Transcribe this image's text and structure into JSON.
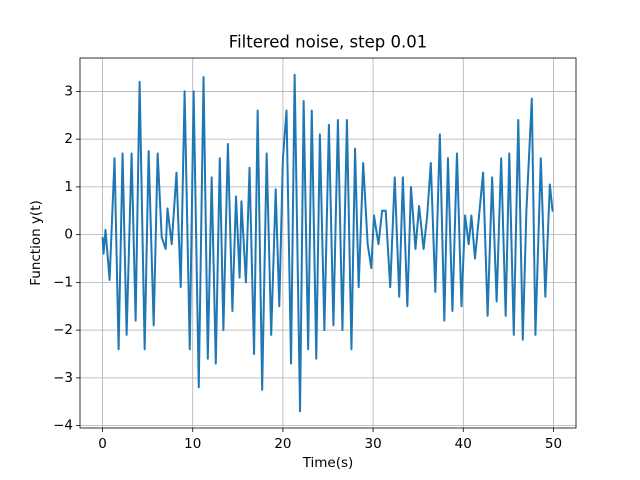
{
  "chart_data": {
    "type": "line",
    "title": "Filtered noise, step 0.01",
    "x_label": "Time(s)",
    "y_label": "Function y(t)",
    "color": "#1f77b4",
    "grid": true,
    "xlim": [
      -2.5,
      52.5
    ],
    "ylim": [
      -4.05,
      3.7
    ],
    "xticks": [
      0,
      10,
      20,
      30,
      40,
      50
    ],
    "yticks": [
      {
        "value": -4,
        "label": "−4"
      },
      {
        "value": -3,
        "label": "−3"
      },
      {
        "value": -2,
        "label": "−2"
      },
      {
        "value": -1,
        "label": "−1"
      },
      0,
      1,
      2,
      3
    ],
    "x": [
      0,
      0.11,
      0.33,
      0.78,
      1.33,
      1.78,
      2.22,
      2.67,
      3.22,
      3.67,
      4.11,
      4.67,
      5.11,
      5.67,
      6.11,
      6.56,
      7.0,
      7.2,
      7.67,
      8.2,
      8.67,
      9.1,
      9.67,
      10.1,
      10.67,
      11.2,
      11.67,
      12.1,
      12.56,
      13.0,
      13.4,
      13.9,
      14.4,
      14.8,
      15.2,
      15.4,
      15.9,
      16.3,
      16.8,
      17.2,
      17.7,
      18.2,
      18.7,
      19.2,
      19.6,
      20.0,
      20.4,
      20.9,
      21.3,
      21.9,
      22.3,
      22.8,
      23.2,
      23.7,
      24.1,
      24.6,
      25.1,
      25.6,
      26.1,
      26.6,
      27.1,
      27.6,
      28.0,
      28.4,
      28.9,
      29.4,
      29.8,
      30.1,
      30.6,
      31.0,
      31.4,
      31.9,
      32.4,
      32.9,
      33.3,
      33.8,
      34.2,
      34.7,
      35.1,
      35.6,
      36.0,
      36.4,
      36.9,
      37.4,
      37.9,
      38.3,
      38.8,
      39.3,
      39.8,
      40.2,
      40.6,
      40.9,
      41.3,
      41.8,
      42.2,
      42.7,
      43.2,
      43.7,
      44.2,
      44.7,
      45.1,
      45.6,
      46.1,
      46.6,
      47.0,
      47.6,
      48.0,
      48.6,
      49.1,
      49.6,
      49.9,
      50.0
    ],
    "values": [
      -0.05,
      -0.4,
      0.1,
      -0.95,
      1.6,
      -2.4,
      1.7,
      -2.1,
      1.7,
      -1.8,
      3.2,
      -2.4,
      1.75,
      -1.9,
      1.7,
      -0.05,
      -0.3,
      0.55,
      -0.2,
      1.3,
      -1.1,
      3.0,
      -2.4,
      3.0,
      -3.2,
      3.3,
      -2.6,
      1.2,
      -2.7,
      1.6,
      -2.0,
      1.9,
      -1.6,
      0.8,
      -0.9,
      0.7,
      -1.0,
      1.4,
      -2.5,
      2.6,
      -3.25,
      1.7,
      -2.1,
      0.95,
      -1.5,
      1.6,
      2.6,
      -2.7,
      3.35,
      -3.7,
      2.8,
      -2.4,
      2.6,
      -2.6,
      2.1,
      -2.0,
      2.3,
      -1.9,
      2.4,
      -2.0,
      2.4,
      -2.4,
      1.8,
      -1.1,
      1.5,
      -0.2,
      -0.7,
      0.4,
      -0.2,
      0.5,
      0.5,
      -1.1,
      1.2,
      -1.3,
      1.2,
      -1.5,
      1.0,
      -0.3,
      0.6,
      -0.3,
      0.4,
      1.5,
      -1.2,
      2.1,
      -1.8,
      1.6,
      -1.6,
      1.7,
      -1.5,
      0.4,
      -0.2,
      0.4,
      -0.5,
      0.5,
      1.3,
      -1.7,
      1.2,
      -1.4,
      1.6,
      -1.7,
      1.7,
      -2.1,
      2.4,
      -2.2,
      0.5,
      2.85,
      -2.1,
      1.6,
      -1.3,
      1.05,
      0.5,
      0.5
    ]
  }
}
